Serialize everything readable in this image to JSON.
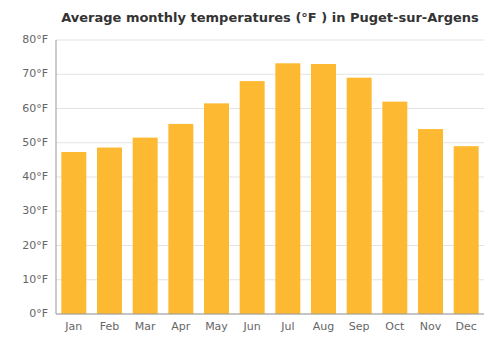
{
  "chart_data": {
    "type": "bar",
    "title": "Average monthly temperatures (°F ) in Puget-sur-Argens",
    "categories": [
      "Jan",
      "Feb",
      "Mar",
      "Apr",
      "May",
      "Jun",
      "Jul",
      "Aug",
      "Sep",
      "Oct",
      "Nov",
      "Dec"
    ],
    "values": [
      47.3,
      48.6,
      51.5,
      55.5,
      61.5,
      68.0,
      73.2,
      73.0,
      69.0,
      62.0,
      54.0,
      49.0
    ],
    "color": "#FDB931",
    "ylim": [
      0,
      80
    ],
    "yticks": [
      {
        "value": 0,
        "label": "0°F"
      },
      {
        "value": 10,
        "label": "10°F"
      },
      {
        "value": 20,
        "label": "20°F"
      },
      {
        "value": 30,
        "label": "30°F"
      },
      {
        "value": 40,
        "label": "40°F"
      },
      {
        "value": 50,
        "label": "50°F"
      },
      {
        "value": 60,
        "label": "60°F"
      },
      {
        "value": 70,
        "label": "70°F"
      },
      {
        "value": 80,
        "label": "80°F"
      }
    ],
    "grid": true
  }
}
